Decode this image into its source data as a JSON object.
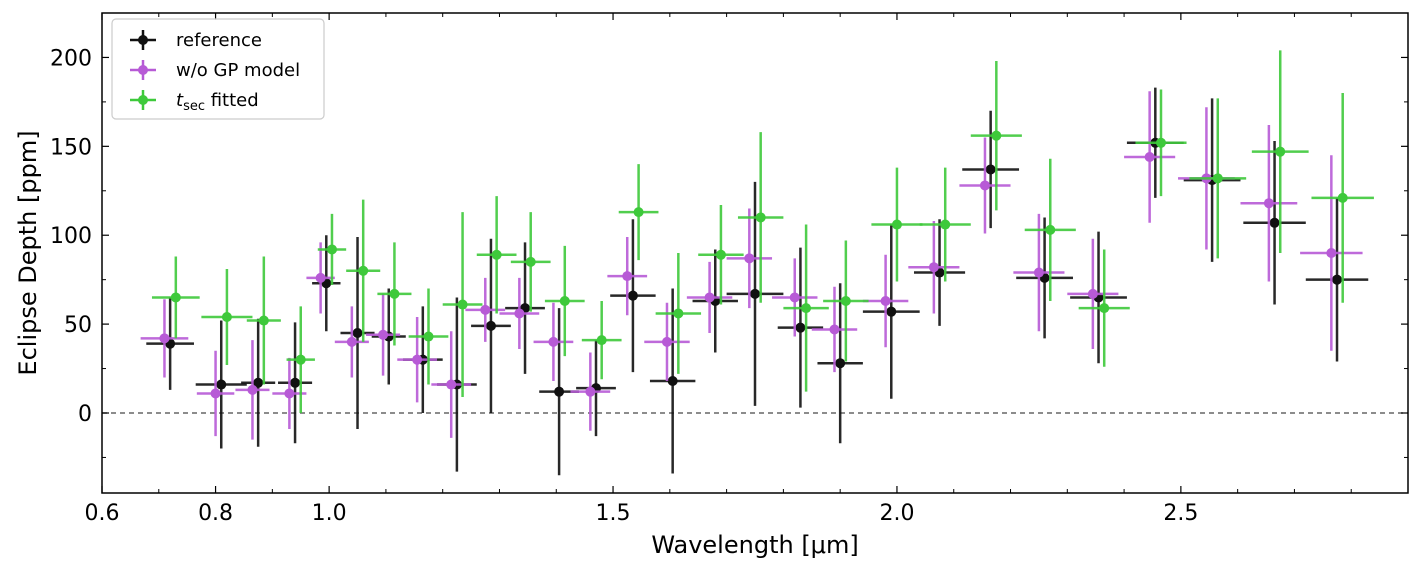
{
  "chart_data": {
    "type": "scatter",
    "xlabel": "Wavelength [μm]",
    "ylabel": "Eclipse Depth [ppm]",
    "xlim": [
      0.6,
      2.9
    ],
    "ylim": [
      -45,
      225
    ],
    "xticks": [
      0.6,
      0.8,
      1.0,
      1.5,
      2.0,
      2.5
    ],
    "xtick_labels": [
      "0.6",
      "0.8",
      "1.0",
      "1.5",
      "2.0",
      "2.5"
    ],
    "yticks": [
      0,
      50,
      100,
      150,
      200
    ],
    "ytick_labels": [
      "0",
      "50",
      "100",
      "150",
      "200"
    ],
    "reference_line_y": 0,
    "legend_position": "top-left",
    "series": [
      {
        "name": "reference",
        "legend": {
          "main": "reference",
          "sub": ""
        },
        "color": "#111111",
        "points": [
          {
            "x": 0.72,
            "y": 39,
            "xerr": 0.042,
            "yerr": 26
          },
          {
            "x": 0.81,
            "y": 16,
            "xerr": 0.045,
            "yerr": 36
          },
          {
            "x": 0.875,
            "y": 17,
            "xerr": 0.03,
            "yerr": 36
          },
          {
            "x": 0.94,
            "y": 17,
            "xerr": 0.03,
            "yerr": 34
          },
          {
            "x": 0.995,
            "y": 73,
            "xerr": 0.025,
            "yerr": 27
          },
          {
            "x": 1.05,
            "y": 45,
            "xerr": 0.03,
            "yerr": 54
          },
          {
            "x": 1.105,
            "y": 43,
            "xerr": 0.03,
            "yerr": 27
          },
          {
            "x": 1.165,
            "y": 30,
            "xerr": 0.035,
            "yerr": 30
          },
          {
            "x": 1.225,
            "y": 16,
            "xerr": 0.035,
            "yerr": 49
          },
          {
            "x": 1.285,
            "y": 49,
            "xerr": 0.035,
            "yerr": 49
          },
          {
            "x": 1.345,
            "y": 59,
            "xerr": 0.035,
            "yerr": 37
          },
          {
            "x": 1.405,
            "y": 12,
            "xerr": 0.035,
            "yerr": 47
          },
          {
            "x": 1.47,
            "y": 14,
            "xerr": 0.035,
            "yerr": 27
          },
          {
            "x": 1.535,
            "y": 66,
            "xerr": 0.04,
            "yerr": 43
          },
          {
            "x": 1.605,
            "y": 18,
            "xerr": 0.04,
            "yerr": 52
          },
          {
            "x": 1.68,
            "y": 63,
            "xerr": 0.04,
            "yerr": 29
          },
          {
            "x": 1.75,
            "y": 67,
            "xerr": 0.05,
            "yerr": 63
          },
          {
            "x": 1.83,
            "y": 48,
            "xerr": 0.04,
            "yerr": 45
          },
          {
            "x": 1.9,
            "y": 28,
            "xerr": 0.04,
            "yerr": 45
          },
          {
            "x": 1.99,
            "y": 57,
            "xerr": 0.05,
            "yerr": 49
          },
          {
            "x": 2.075,
            "y": 79,
            "xerr": 0.045,
            "yerr": 30
          },
          {
            "x": 2.165,
            "y": 137,
            "xerr": 0.05,
            "yerr": 33
          },
          {
            "x": 2.26,
            "y": 76,
            "xerr": 0.05,
            "yerr": 34
          },
          {
            "x": 2.355,
            "y": 65,
            "xerr": 0.05,
            "yerr": 37
          },
          {
            "x": 2.455,
            "y": 152,
            "xerr": 0.05,
            "yerr": 31
          },
          {
            "x": 2.555,
            "y": 131,
            "xerr": 0.05,
            "yerr": 46
          },
          {
            "x": 2.665,
            "y": 107,
            "xerr": 0.055,
            "yerr": 46
          },
          {
            "x": 2.775,
            "y": 75,
            "xerr": 0.055,
            "yerr": 46
          }
        ]
      },
      {
        "name": "w/o GP model",
        "legend": {
          "main": "w/o GP model",
          "sub": ""
        },
        "color": "#b75ad6",
        "points": [
          {
            "x": 0.71,
            "y": 42,
            "xerr": 0.042,
            "yerr": 22
          },
          {
            "x": 0.8,
            "y": 11,
            "xerr": 0.033,
            "yerr": 24
          },
          {
            "x": 0.865,
            "y": 13,
            "xerr": 0.03,
            "yerr": 28
          },
          {
            "x": 0.93,
            "y": 11,
            "xerr": 0.03,
            "yerr": 20
          },
          {
            "x": 0.985,
            "y": 76,
            "xerr": 0.025,
            "yerr": 20
          },
          {
            "x": 1.04,
            "y": 40,
            "xerr": 0.03,
            "yerr": 20
          },
          {
            "x": 1.095,
            "y": 44,
            "xerr": 0.03,
            "yerr": 23
          },
          {
            "x": 1.155,
            "y": 30,
            "xerr": 0.035,
            "yerr": 24
          },
          {
            "x": 1.215,
            "y": 16,
            "xerr": 0.035,
            "yerr": 30
          },
          {
            "x": 1.275,
            "y": 58,
            "xerr": 0.035,
            "yerr": 18
          },
          {
            "x": 1.335,
            "y": 56,
            "xerr": 0.035,
            "yerr": 20
          },
          {
            "x": 1.395,
            "y": 40,
            "xerr": 0.035,
            "yerr": 22
          },
          {
            "x": 1.46,
            "y": 12,
            "xerr": 0.035,
            "yerr": 22
          },
          {
            "x": 1.525,
            "y": 77,
            "xerr": 0.035,
            "yerr": 22
          },
          {
            "x": 1.595,
            "y": 40,
            "xerr": 0.04,
            "yerr": 22
          },
          {
            "x": 1.67,
            "y": 65,
            "xerr": 0.04,
            "yerr": 20
          },
          {
            "x": 1.74,
            "y": 87,
            "xerr": 0.04,
            "yerr": 28
          },
          {
            "x": 1.82,
            "y": 65,
            "xerr": 0.04,
            "yerr": 22
          },
          {
            "x": 1.89,
            "y": 47,
            "xerr": 0.04,
            "yerr": 24
          },
          {
            "x": 1.98,
            "y": 63,
            "xerr": 0.04,
            "yerr": 26
          },
          {
            "x": 2.065,
            "y": 82,
            "xerr": 0.045,
            "yerr": 26
          },
          {
            "x": 2.155,
            "y": 128,
            "xerr": 0.045,
            "yerr": 27
          },
          {
            "x": 2.25,
            "y": 79,
            "xerr": 0.045,
            "yerr": 33
          },
          {
            "x": 2.345,
            "y": 67,
            "xerr": 0.045,
            "yerr": 31
          },
          {
            "x": 2.445,
            "y": 144,
            "xerr": 0.045,
            "yerr": 37
          },
          {
            "x": 2.545,
            "y": 132,
            "xerr": 0.05,
            "yerr": 40
          },
          {
            "x": 2.655,
            "y": 118,
            "xerr": 0.05,
            "yerr": 44
          },
          {
            "x": 2.765,
            "y": 90,
            "xerr": 0.055,
            "yerr": 55
          }
        ]
      },
      {
        "name": "t_sec fitted",
        "legend": {
          "main": "t",
          "sub": "sec",
          "tail": " fitted"
        },
        "color": "#3ec93b",
        "points": [
          {
            "x": 0.73,
            "y": 65,
            "xerr": 0.042,
            "yerr": 23
          },
          {
            "x": 0.82,
            "y": 54,
            "xerr": 0.045,
            "yerr": 27
          },
          {
            "x": 0.885,
            "y": 52,
            "xerr": 0.03,
            "yerr": 36
          },
          {
            "x": 0.95,
            "y": 30,
            "xerr": 0.025,
            "yerr": 30
          },
          {
            "x": 1.005,
            "y": 92,
            "xerr": 0.025,
            "yerr": 20
          },
          {
            "x": 1.06,
            "y": 80,
            "xerr": 0.03,
            "yerr": 40
          },
          {
            "x": 1.115,
            "y": 67,
            "xerr": 0.03,
            "yerr": 29
          },
          {
            "x": 1.175,
            "y": 43,
            "xerr": 0.035,
            "yerr": 27
          },
          {
            "x": 1.235,
            "y": 61,
            "xerr": 0.035,
            "yerr": 52
          },
          {
            "x": 1.295,
            "y": 89,
            "xerr": 0.035,
            "yerr": 33
          },
          {
            "x": 1.355,
            "y": 85,
            "xerr": 0.035,
            "yerr": 28
          },
          {
            "x": 1.415,
            "y": 63,
            "xerr": 0.035,
            "yerr": 31
          },
          {
            "x": 1.48,
            "y": 41,
            "xerr": 0.035,
            "yerr": 22
          },
          {
            "x": 1.545,
            "y": 113,
            "xerr": 0.035,
            "yerr": 27
          },
          {
            "x": 1.615,
            "y": 56,
            "xerr": 0.04,
            "yerr": 34
          },
          {
            "x": 1.69,
            "y": 89,
            "xerr": 0.04,
            "yerr": 28
          },
          {
            "x": 1.76,
            "y": 110,
            "xerr": 0.04,
            "yerr": 48
          },
          {
            "x": 1.84,
            "y": 59,
            "xerr": 0.04,
            "yerr": 47
          },
          {
            "x": 1.91,
            "y": 63,
            "xerr": 0.04,
            "yerr": 34
          },
          {
            "x": 2.0,
            "y": 106,
            "xerr": 0.045,
            "yerr": 32
          },
          {
            "x": 2.085,
            "y": 106,
            "xerr": 0.045,
            "yerr": 32
          },
          {
            "x": 2.175,
            "y": 156,
            "xerr": 0.045,
            "yerr": 42
          },
          {
            "x": 2.27,
            "y": 103,
            "xerr": 0.045,
            "yerr": 40
          },
          {
            "x": 2.365,
            "y": 59,
            "xerr": 0.045,
            "yerr": 33
          },
          {
            "x": 2.465,
            "y": 152,
            "xerr": 0.045,
            "yerr": 30
          },
          {
            "x": 2.565,
            "y": 132,
            "xerr": 0.05,
            "yerr": 45
          },
          {
            "x": 2.675,
            "y": 147,
            "xerr": 0.05,
            "yerr": 57
          },
          {
            "x": 2.785,
            "y": 121,
            "xerr": 0.055,
            "yerr": 59
          }
        ]
      }
    ]
  }
}
